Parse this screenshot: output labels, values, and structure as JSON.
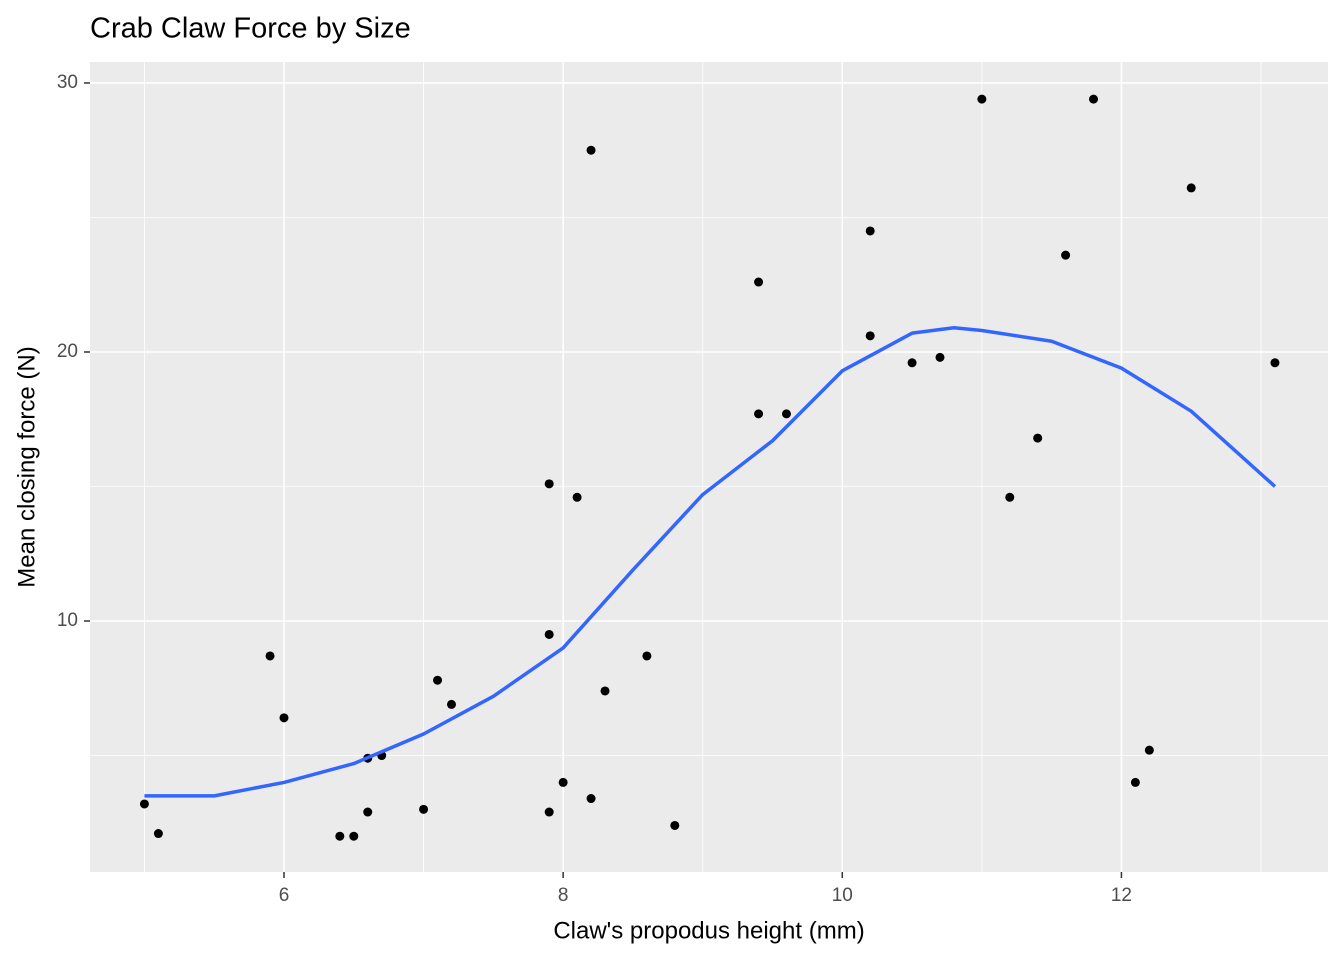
{
  "chart_data": {
    "type": "scatter",
    "title": "Crab Claw Force by Size",
    "xlabel": "Claw's propodus height (mm)",
    "ylabel": "Mean closing force (N)",
    "points": {
      "color": "#000000",
      "x": [
        5.0,
        5.1,
        5.9,
        6.0,
        6.4,
        6.5,
        6.6,
        6.7,
        6.6,
        7.0,
        7.1,
        7.2,
        7.9,
        7.9,
        7.9,
        8.0,
        8.1,
        8.2,
        8.2,
        8.3,
        8.6,
        8.8,
        9.4,
        9.4,
        9.6,
        10.2,
        10.2,
        10.5,
        10.7,
        11.0,
        11.2,
        11.4,
        11.6,
        11.8,
        12.1,
        12.2,
        12.5,
        13.1
      ],
      "y": [
        3.2,
        2.1,
        8.7,
        6.4,
        2.0,
        2.0,
        4.9,
        5.0,
        2.9,
        3.0,
        7.8,
        6.9,
        15.1,
        9.5,
        2.9,
        4.0,
        14.6,
        27.5,
        3.4,
        7.4,
        8.7,
        2.4,
        22.6,
        17.7,
        17.7,
        24.5,
        20.6,
        19.6,
        19.8,
        29.4,
        14.6,
        16.8,
        23.6,
        29.4,
        4.0,
        5.2,
        26.1,
        19.6
      ]
    },
    "smooth": {
      "color": "#3366ff",
      "x": [
        5.0,
        5.5,
        6.0,
        6.5,
        7.0,
        7.5,
        8.0,
        8.5,
        9.0,
        9.5,
        10.0,
        10.5,
        10.8,
        11.0,
        11.5,
        12.0,
        12.5,
        13.1
      ],
      "y": [
        3.5,
        3.5,
        4.0,
        4.7,
        5.8,
        7.2,
        9.0,
        11.9,
        14.7,
        16.7,
        19.3,
        20.7,
        20.9,
        20.8,
        20.4,
        19.4,
        17.8,
        15.0
      ]
    },
    "xlim": [
      4.61,
      13.48
    ],
    "ylim": [
      0.67,
      30.78
    ],
    "xticks": [
      6,
      8,
      10,
      12
    ],
    "yticks": [
      10,
      20,
      30
    ],
    "x_minor_grid": [
      5,
      7,
      9,
      11,
      13
    ],
    "y_minor_grid": [
      5,
      15,
      25
    ],
    "grid": true
  }
}
